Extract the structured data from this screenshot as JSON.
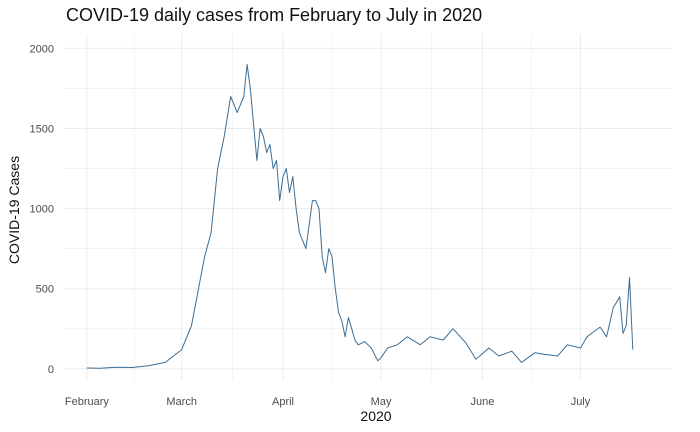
{
  "chart_data": {
    "type": "line",
    "title": "COVID-19 daily cases from February to July in 2020",
    "xlabel": "2020",
    "ylabel": "COVID-19 Cases",
    "x_tick_labels": [
      "February",
      "March",
      "April",
      "May",
      "June",
      "July"
    ],
    "y_ticks": [
      0,
      500,
      1000,
      1500,
      2000
    ],
    "xlim": [
      "2020-01-25",
      "2020-07-29"
    ],
    "ylim": [
      -70,
      2090
    ],
    "grid": true,
    "colors": {
      "line": "#3b6e96",
      "grid": "#ebebeb"
    },
    "series": [
      {
        "x": [
          "2020-02-01",
          "2020-02-05",
          "2020-02-10",
          "2020-02-15",
          "2020-02-20",
          "2020-02-25",
          "2020-03-01",
          "2020-03-04",
          "2020-03-08",
          "2020-03-10",
          "2020-03-12",
          "2020-03-14",
          "2020-03-16",
          "2020-03-18",
          "2020-03-20",
          "2020-03-21",
          "2020-03-22",
          "2020-03-24",
          "2020-03-25",
          "2020-03-26",
          "2020-03-27",
          "2020-03-28",
          "2020-03-29",
          "2020-03-30",
          "2020-03-31",
          "2020-04-01",
          "2020-04-02",
          "2020-04-03",
          "2020-04-04",
          "2020-04-05",
          "2020-04-06",
          "2020-04-07",
          "2020-04-08",
          "2020-04-09",
          "2020-04-10",
          "2020-04-11",
          "2020-04-12",
          "2020-04-13",
          "2020-04-14",
          "2020-04-15",
          "2020-04-16",
          "2020-04-17",
          "2020-04-18",
          "2020-04-19",
          "2020-04-20",
          "2020-04-21",
          "2020-04-22",
          "2020-04-23",
          "2020-04-24",
          "2020-04-25",
          "2020-04-26",
          "2020-04-27",
          "2020-04-28",
          "2020-04-29",
          "2020-04-30",
          "2020-05-01",
          "2020-05-03",
          "2020-05-06",
          "2020-05-09",
          "2020-05-13",
          "2020-05-16",
          "2020-05-20",
          "2020-05-23",
          "2020-05-27",
          "2020-05-30",
          "2020-06-03",
          "2020-06-06",
          "2020-06-10",
          "2020-06-13",
          "2020-06-17",
          "2020-06-20",
          "2020-06-24",
          "2020-06-27",
          "2020-07-01",
          "2020-07-03",
          "2020-07-05",
          "2020-07-07",
          "2020-07-09",
          "2020-07-11",
          "2020-07-13",
          "2020-07-14",
          "2020-07-15",
          "2020-07-16",
          "2020-07-17"
        ],
        "values": [
          5,
          3,
          10,
          8,
          20,
          40,
          120,
          270,
          700,
          850,
          1250,
          1450,
          1700,
          1600,
          1700,
          1900,
          1750,
          1300,
          1500,
          1450,
          1350,
          1400,
          1250,
          1300,
          1050,
          1200,
          1250,
          1100,
          1200,
          1000,
          850,
          800,
          750,
          900,
          1050,
          1050,
          1000,
          700,
          600,
          750,
          700,
          500,
          350,
          300,
          200,
          320,
          250,
          180,
          150,
          160,
          170,
          150,
          130,
          90,
          50,
          70,
          130,
          150,
          200,
          150,
          200,
          180,
          250,
          160,
          60,
          130,
          80,
          110,
          40,
          100,
          90,
          80,
          150,
          130,
          200,
          230,
          260,
          200,
          380,
          450,
          220,
          270,
          570,
          120
        ]
      }
    ]
  }
}
